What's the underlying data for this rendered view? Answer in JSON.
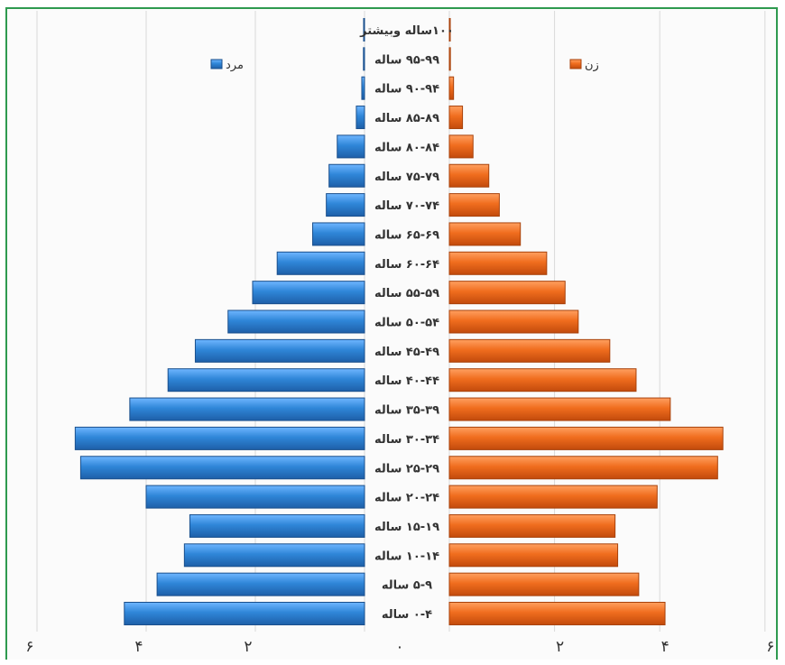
{
  "chart_data": {
    "type": "bar",
    "orientation": "population-pyramid",
    "categories": [
      "۰-۴ ساله",
      "۵-۹ ساله",
      "۱۰-۱۴ ساله",
      "۱۵-۱۹ ساله",
      "۲۰-۲۴ ساله",
      "۲۵-۲۹ ساله",
      "۳۰-۳۴ ساله",
      "۳۵-۳۹ ساله",
      "۴۰-۴۴ ساله",
      "۴۵-۴۹ ساله",
      "۵۰-۵۴ ساله",
      "۵۵-۵۹ ساله",
      "۶۰-۶۴ ساله",
      "۶۵-۶۹ ساله",
      "۷۰-۷۴ ساله",
      "۷۵-۷۹ ساله",
      "۸۰-۸۴ ساله",
      "۸۵-۸۹ ساله",
      "۹۰-۹۴ ساله",
      "۹۵-۹۹ ساله",
      "۱۰۰ساله وبیشتر"
    ],
    "series": [
      {
        "name": "مرد",
        "color": "#2f7fd0",
        "side": "left",
        "values": [
          4.4,
          3.8,
          3.3,
          3.2,
          4.0,
          5.2,
          5.3,
          4.3,
          3.6,
          3.1,
          2.5,
          2.05,
          1.6,
          0.95,
          0.7,
          0.65,
          0.5,
          0.15,
          0.05,
          0.02,
          0.01
        ]
      },
      {
        "name": "زن",
        "color": "#ee6a1c",
        "side": "right",
        "values": [
          4.1,
          3.6,
          3.2,
          3.15,
          3.95,
          5.1,
          5.2,
          4.2,
          3.55,
          3.05,
          2.45,
          2.2,
          1.85,
          1.35,
          0.95,
          0.75,
          0.45,
          0.25,
          0.08,
          0.02,
          0.01
        ]
      }
    ],
    "x_ticks_left": [
      "۶",
      "۴",
      "۲",
      "۰"
    ],
    "x_ticks_right": [
      "۲",
      "۴",
      "۶"
    ],
    "xlim": [
      -6,
      6
    ],
    "grid": true,
    "legend": "top"
  }
}
